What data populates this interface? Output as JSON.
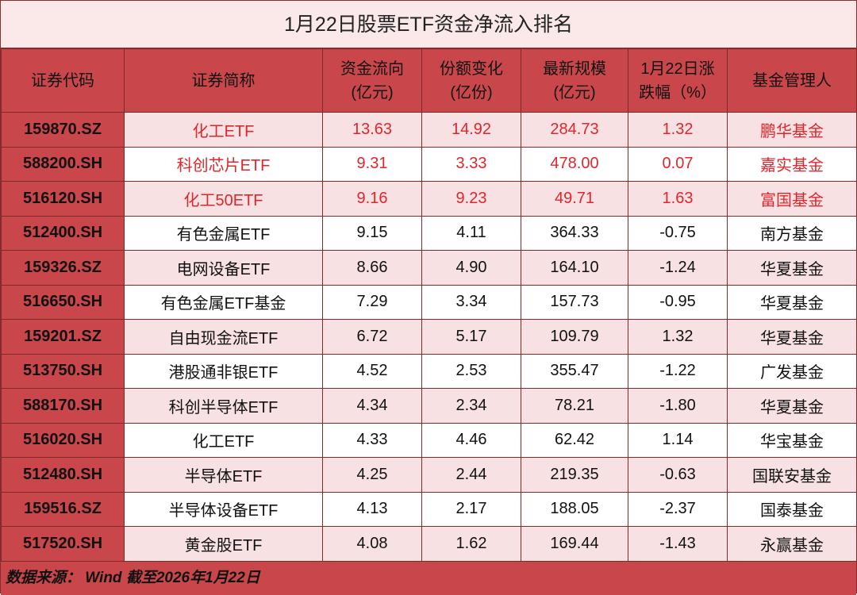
{
  "title": "1月22日股票ETF资金净流入排名",
  "table": {
    "columns": [
      "证券代码",
      "证券简称",
      "资金流向\n(亿元)",
      "份额变化\n(亿份)",
      "最新规模\n(亿元)",
      "1月22日涨\n跌幅（%）",
      "基金管理人"
    ],
    "rows": [
      [
        "159870.SZ",
        "化工ETF",
        "13.63",
        "14.92",
        "284.73",
        "1.32",
        "鹏华基金"
      ],
      [
        "588200.SH",
        "科创芯片ETF",
        "9.31",
        "3.33",
        "478.00",
        "0.07",
        "嘉实基金"
      ],
      [
        "516120.SH",
        "化工50ETF",
        "9.16",
        "9.23",
        "49.71",
        "1.63",
        "富国基金"
      ],
      [
        "512400.SH",
        "有色金属ETF",
        "9.15",
        "4.11",
        "364.33",
        "-0.75",
        "南方基金"
      ],
      [
        "159326.SZ",
        "电网设备ETF",
        "8.66",
        "4.90",
        "164.10",
        "-1.24",
        "华夏基金"
      ],
      [
        "516650.SH",
        "有色金属ETF基金",
        "7.29",
        "3.34",
        "157.73",
        "-0.95",
        "华夏基金"
      ],
      [
        "159201.SZ",
        "自由现金流ETF",
        "6.72",
        "5.17",
        "109.79",
        "1.32",
        "华夏基金"
      ],
      [
        "513750.SH",
        "港股通非银ETF",
        "4.52",
        "2.53",
        "355.47",
        "-1.22",
        "广发基金"
      ],
      [
        "588170.SH",
        "科创半导体ETF",
        "4.34",
        "2.34",
        "78.21",
        "-1.80",
        "华夏基金"
      ],
      [
        "516020.SH",
        "化工ETF",
        "4.33",
        "4.46",
        "62.42",
        "1.14",
        "华宝基金"
      ],
      [
        "512480.SH",
        "半导体ETF",
        "4.25",
        "2.44",
        "219.35",
        "-0.63",
        "国联安基金"
      ],
      [
        "159516.SZ",
        "半导体设备ETF",
        "4.13",
        "2.17",
        "188.05",
        "-2.37",
        "国泰基金"
      ],
      [
        "517520.SH",
        "黄金股ETF",
        "4.08",
        "1.62",
        "169.44",
        "-1.43",
        "永赢基金"
      ]
    ]
  },
  "footer": "数据来源： Wind   截至2026年1月22日"
}
